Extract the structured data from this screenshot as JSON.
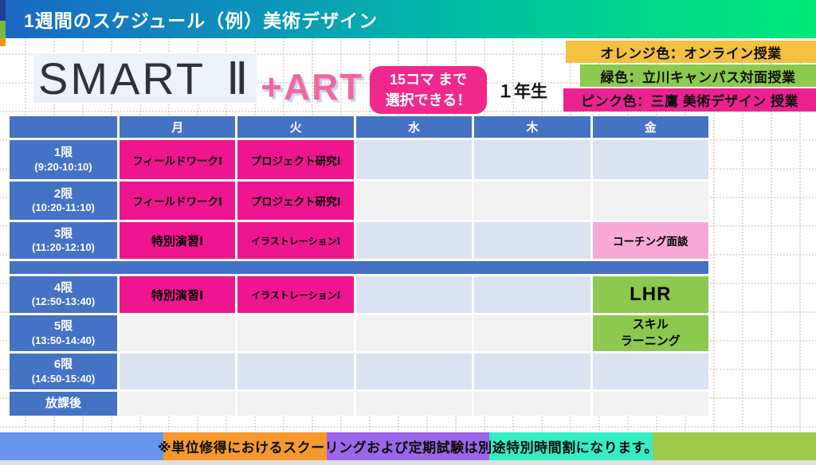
{
  "banner": {
    "title": "1週間のスケジュール（例）美術デザイン"
  },
  "logo": {
    "smart": "SMART",
    "numeral": "Ⅱ",
    "art": "+ART"
  },
  "badge": {
    "line1": "15コマ まで",
    "line2": "選択できる！"
  },
  "grade_label": "１年生",
  "legend": {
    "items": [
      {
        "label": "オレンジ色：オンライン授業",
        "color": "#F3C040",
        "meaning": "オンライン授業"
      },
      {
        "label": "緑色：立川キャンパス対面授業",
        "color": "#8CC94E",
        "meaning": "立川キャンパス対面授業"
      },
      {
        "label": "ピンク色：三鷹 美術デザイン 授業",
        "color": "#EB2290",
        "meaning": "三鷹 美術デザイン 授業"
      }
    ]
  },
  "timetable": {
    "days": [
      "月",
      "火",
      "水",
      "木",
      "金"
    ],
    "rows": [
      {
        "period": "1限",
        "time": "(9:20-10:10)",
        "cells": [
          {
            "text": "フィールドワークⅠ"
          },
          {
            "text": "プロジェクト研究Ⅰ"
          },
          {},
          {},
          {}
        ]
      },
      {
        "period": "2限",
        "time": "(10:20-11:10)",
        "cells": [
          {
            "text": "フィールドワークⅠ"
          },
          {
            "text": "プロジェクト研究Ⅰ"
          },
          {},
          {},
          {}
        ]
      },
      {
        "period": "3限",
        "time": "(11:20-12:10)",
        "cells": [
          {
            "text": "特別演習Ⅰ"
          },
          {
            "text": "イラストレーションⅠ"
          },
          {},
          {},
          {
            "text": "コーチング面談"
          }
        ]
      },
      {
        "period": "4限",
        "time": "(12:50-13:40)",
        "cells": [
          {
            "text": "特別演習Ⅰ"
          },
          {
            "text": "イラストレーションⅠ"
          },
          {},
          {},
          {
            "text": "LHR"
          }
        ]
      },
      {
        "period": "5限",
        "time": "(13:50-14:40)",
        "cells": [
          {},
          {},
          {},
          {},
          {
            "text": "スキル\nラーニング"
          }
        ]
      },
      {
        "period": "6限",
        "time": "(14:50-15:40)",
        "cells": [
          {},
          {},
          {},
          {},
          {}
        ]
      },
      {
        "period": "放課後",
        "time": "",
        "cells": [
          {},
          {},
          {},
          {},
          {}
        ]
      }
    ]
  },
  "footer": {
    "note": "※単位修得におけるスクーリングおよび定期試験は別途特別時間割になります。"
  },
  "colors": {
    "banner_gradient": [
      "#1A68C3",
      "#00BAA6",
      "#00E878"
    ],
    "corner_strip": [
      "#1F3E92",
      "#78B93F",
      "#F0941F"
    ],
    "table_header_blue": "#4472C4",
    "class_pink": "#EF148F",
    "coaching_light_pink": "#F8A9DA",
    "class_green": "#8CC94E",
    "empty_cell_blue": "#DBE2F1",
    "empty_cell_gray": "#F1F1F1",
    "badge_pink": "#F0288C",
    "footer_segments": [
      "#6795EC",
      "#F5992E",
      "#9C66EA",
      "#33EDC4",
      "#9DC94C"
    ]
  }
}
